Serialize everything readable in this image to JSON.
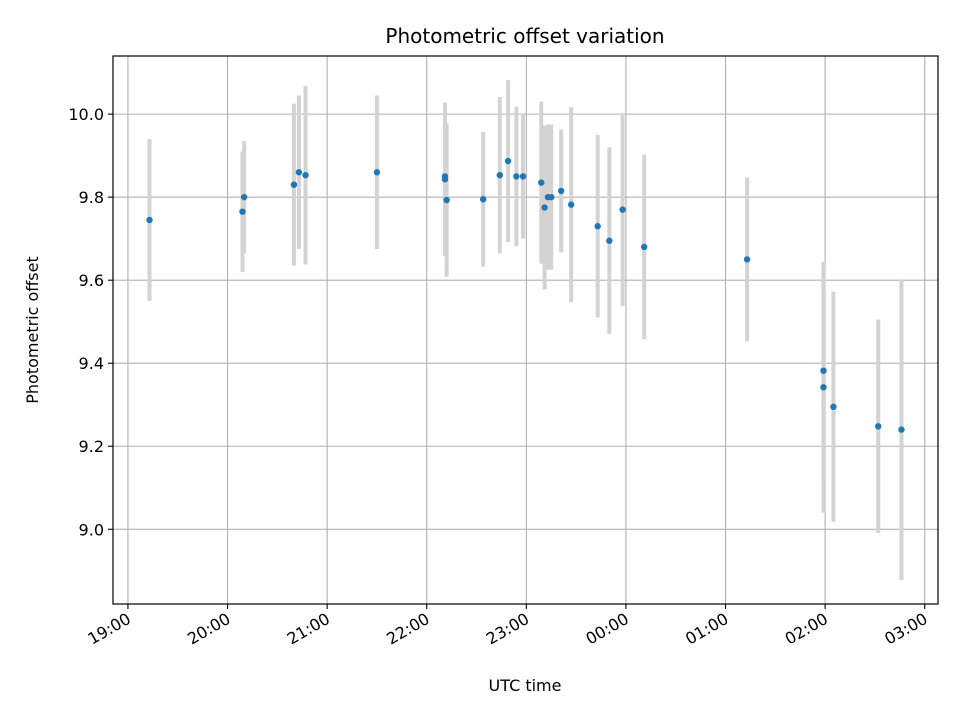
{
  "chart_data": {
    "type": "scatter",
    "title": "Photometric offset variation",
    "xlabel": "UTC time",
    "ylabel": "Photometric offset",
    "x_tick_labels": [
      "19:00",
      "20:00",
      "21:00",
      "22:00",
      "23:00",
      "00:00",
      "01:00",
      "02:00",
      "03:00"
    ],
    "y_ticks": [
      9.0,
      9.2,
      9.4,
      9.6,
      9.8,
      10.0
    ],
    "y_tick_labels": [
      "9.0",
      "9.2",
      "9.4",
      "9.6",
      "9.8",
      "10.0"
    ],
    "xlim": [
      "18:51",
      "03:08"
    ],
    "ylim": [
      8.82,
      10.14
    ],
    "grid": true,
    "marker_color": "#1f77b4",
    "errorbar_color": "#d3d3d3",
    "points": [
      {
        "x": "19:13",
        "y": 9.745,
        "yerr": 0.195
      },
      {
        "x": "20:09",
        "y": 9.765,
        "yerr": 0.145
      },
      {
        "x": "20:10",
        "y": 9.8,
        "yerr": 0.135
      },
      {
        "x": "20:40",
        "y": 9.83,
        "yerr": 0.195
      },
      {
        "x": "20:43",
        "y": 9.86,
        "yerr": 0.185
      },
      {
        "x": "20:47",
        "y": 9.853,
        "yerr": 0.215
      },
      {
        "x": "21:30",
        "y": 9.86,
        "yerr": 0.185
      },
      {
        "x": "22:11",
        "y": 9.843,
        "yerr": 0.185
      },
      {
        "x": "22:11",
        "y": 9.85,
        "yerr": 0.13
      },
      {
        "x": "22:12",
        "y": 9.793,
        "yerr": 0.185
      },
      {
        "x": "22:34",
        "y": 9.795,
        "yerr": 0.162
      },
      {
        "x": "22:44",
        "y": 9.853,
        "yerr": 0.188
      },
      {
        "x": "22:49",
        "y": 9.887,
        "yerr": 0.195
      },
      {
        "x": "22:54",
        "y": 9.85,
        "yerr": 0.168
      },
      {
        "x": "22:58",
        "y": 9.85,
        "yerr": 0.15
      },
      {
        "x": "23:09",
        "y": 9.835,
        "yerr": 0.195
      },
      {
        "x": "23:11",
        "y": 9.775,
        "yerr": 0.197
      },
      {
        "x": "23:13",
        "y": 9.8,
        "yerr": 0.175
      },
      {
        "x": "23:15",
        "y": 9.8,
        "yerr": 0.175
      },
      {
        "x": "23:21",
        "y": 9.815,
        "yerr": 0.148
      },
      {
        "x": "23:27",
        "y": 9.782,
        "yerr": 0.235
      },
      {
        "x": "23:43",
        "y": 9.73,
        "yerr": 0.22
      },
      {
        "x": "23:50",
        "y": 9.695,
        "yerr": 0.225
      },
      {
        "x": "23:58",
        "y": 9.77,
        "yerr": 0.232
      },
      {
        "x": "00:11",
        "y": 9.68,
        "yerr": 0.222
      },
      {
        "x": "01:13",
        "y": 9.65,
        "yerr": 0.197
      },
      {
        "x": "01:59",
        "y": 9.382,
        "yerr": 0.262
      },
      {
        "x": "01:59",
        "y": 9.342,
        "yerr": 0.302
      },
      {
        "x": "02:05",
        "y": 9.295,
        "yerr": 0.277
      },
      {
        "x": "02:32",
        "y": 9.248,
        "yerr": 0.257
      },
      {
        "x": "02:46",
        "y": 9.24,
        "yerr": 0.362
      }
    ]
  }
}
